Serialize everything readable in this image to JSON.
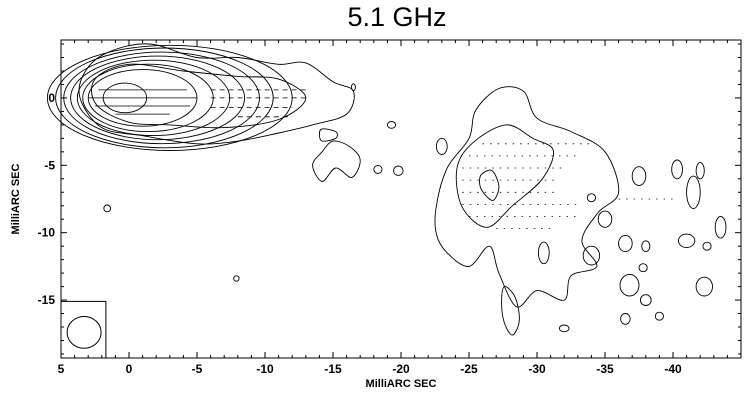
{
  "chart_data": {
    "type": "contour",
    "title": "5.1 GHz",
    "xlabel": "MilliARC SEC",
    "ylabel": "MilliARC SEC",
    "xlim": [
      5,
      -45
    ],
    "ylim": [
      -19.3,
      4.3
    ],
    "x_ticks": [
      5,
      0,
      -5,
      -10,
      -15,
      -20,
      -25,
      -30,
      -35,
      -40
    ],
    "x_tick_labels": [
      "5",
      "0",
      "-5",
      "-10",
      "-15",
      "-20",
      "-25",
      "-30",
      "-35",
      "-40"
    ],
    "y_ticks": [
      0,
      -5,
      -10,
      -15
    ],
    "y_tick_labels": [
      "0",
      "-5",
      "-10",
      "-15"
    ],
    "grid": false,
    "core": {
      "x": 0.5,
      "y": 0
    },
    "core_levels": [
      {
        "a": 4.0,
        "b": 2.1,
        "dx": -1.5
      },
      {
        "a": 4.8,
        "b": 2.5,
        "dx": -1.9
      },
      {
        "a": 5.6,
        "b": 2.8,
        "dx": -2.3
      },
      {
        "a": 6.4,
        "b": 3.1,
        "dx": -2.6
      },
      {
        "a": 7.2,
        "b": 3.4,
        "dx": -2.9
      },
      {
        "a": 8.0,
        "b": 3.7,
        "dx": -3.1
      },
      {
        "a": 9.0,
        "b": 3.9,
        "dx": -3.5
      }
    ],
    "outer_jet": [
      [
        3.2,
        2.0
      ],
      [
        1.5,
        3.4
      ],
      [
        -1.5,
        4.0
      ],
      [
        -5,
        3.0
      ],
      [
        -8,
        3.0
      ],
      [
        -11,
        2.5
      ],
      [
        -13,
        2.6
      ],
      [
        -15,
        1.2
      ],
      [
        -16.5,
        0.5
      ],
      [
        -16,
        -1.2
      ],
      [
        -13.5,
        -2.0
      ],
      [
        -11,
        -2.6
      ],
      [
        -8,
        -3.2
      ],
      [
        -5,
        -3.4
      ],
      [
        -1,
        -2.8
      ],
      [
        2,
        -2.2
      ],
      [
        3.6,
        0.0
      ]
    ],
    "mid_jet": [
      [
        2.5,
        1.4
      ],
      [
        0,
        2.5
      ],
      [
        -4,
        2.0
      ],
      [
        -8,
        1.6
      ],
      [
        -11,
        1.4
      ],
      [
        -13,
        0.0
      ],
      [
        -11,
        -1.6
      ],
      [
        -7,
        -2.2
      ],
      [
        -3,
        -2.0
      ],
      [
        0,
        -1.8
      ],
      [
        2.4,
        -0.5
      ]
    ],
    "knot_blob": [
      [
        -15,
        -3.2
      ],
      [
        -16.2,
        -3.6
      ],
      [
        -17,
        -4.6
      ],
      [
        -16.4,
        -5.9
      ],
      [
        -15.2,
        -5.2
      ],
      [
        -14.2,
        -6.2
      ],
      [
        -13.5,
        -5.0
      ],
      [
        -14.2,
        -4.0
      ]
    ],
    "knot_small": [
      [
        -14.2,
        -2.3
      ],
      [
        -15.2,
        -2.5
      ],
      [
        -15.2,
        -3.0
      ],
      [
        -14.2,
        -3.2
      ],
      [
        -14.0,
        -2.7
      ]
    ],
    "lobe_outer": [
      [
        -22.6,
        -8.0
      ],
      [
        -23.4,
        -5.2
      ],
      [
        -25,
        -3.0
      ],
      [
        -25.5,
        -0.9
      ],
      [
        -27.2,
        0.7
      ],
      [
        -29,
        0.5
      ],
      [
        -30,
        -1.5
      ],
      [
        -32.5,
        -2.5
      ],
      [
        -35,
        -4.0
      ],
      [
        -36,
        -7.0
      ],
      [
        -34.5,
        -8.5
      ],
      [
        -33.3,
        -10.6
      ],
      [
        -34.4,
        -12.5
      ],
      [
        -32.5,
        -13.2
      ],
      [
        -32,
        -15.0
      ],
      [
        -30,
        -14.3
      ],
      [
        -28.5,
        -15.5
      ],
      [
        -27.2,
        -13.0
      ],
      [
        -26.5,
        -11.0
      ],
      [
        -25,
        -12.5
      ],
      [
        -23.4,
        -11.5
      ],
      [
        -22.6,
        -10.1
      ]
    ],
    "lobe_inner": [
      [
        -24.1,
        -5.3
      ],
      [
        -25.2,
        -3.4
      ],
      [
        -27.7,
        -2.0
      ],
      [
        -29.7,
        -3.0
      ],
      [
        -31.2,
        -3.9
      ],
      [
        -30.4,
        -6.0
      ],
      [
        -28.2,
        -8.0
      ],
      [
        -26.3,
        -9.6
      ],
      [
        -24.5,
        -8.1
      ]
    ],
    "lobe_core": [
      [
        -25.9,
        -5.7
      ],
      [
        -26.7,
        -5.4
      ],
      [
        -27.2,
        -6.6
      ],
      [
        -26.8,
        -7.6
      ],
      [
        -26.2,
        -7.2
      ],
      [
        -25.8,
        -6.5
      ]
    ],
    "lobe_south": [
      [
        -27.6,
        -14.0
      ],
      [
        -28.4,
        -14.8
      ],
      [
        -28.7,
        -16.5
      ],
      [
        -28.2,
        -17.6
      ],
      [
        -27.6,
        -16.7
      ],
      [
        -27.4,
        -15.2
      ]
    ],
    "small_contours": [
      {
        "cx": 1.6,
        "cy": -8.2,
        "rx": 0.25,
        "ry": 0.25
      },
      {
        "cx": -16.5,
        "cy": 0.8,
        "rx": 0.15,
        "ry": 0.25
      },
      {
        "cx": -19.3,
        "cy": -2.0,
        "rx": 0.3,
        "ry": 0.25
      },
      {
        "cx": -18.3,
        "cy": -5.3,
        "rx": 0.3,
        "ry": 0.3
      },
      {
        "cx": -19.8,
        "cy": -5.4,
        "rx": 0.35,
        "ry": 0.35
      },
      {
        "cx": -23.0,
        "cy": -3.6,
        "rx": 0.4,
        "ry": 0.6
      },
      {
        "cx": -7.9,
        "cy": -13.4,
        "rx": 0.2,
        "ry": 0.2
      },
      {
        "cx": -30.5,
        "cy": -11.5,
        "rx": 0.4,
        "ry": 0.8
      },
      {
        "cx": -32.0,
        "cy": -17.1,
        "rx": 0.35,
        "ry": 0.25
      },
      {
        "cx": -34.0,
        "cy": -11.7,
        "rx": 0.6,
        "ry": 0.7
      },
      {
        "cx": -35.0,
        "cy": -9.0,
        "rx": 0.5,
        "ry": 0.6
      },
      {
        "cx": -36.5,
        "cy": -10.8,
        "rx": 0.5,
        "ry": 0.6
      },
      {
        "cx": -37.5,
        "cy": -5.8,
        "rx": 0.5,
        "ry": 0.7
      },
      {
        "cx": -36.8,
        "cy": -13.9,
        "rx": 0.7,
        "ry": 0.8
      },
      {
        "cx": -37.8,
        "cy": -12.6,
        "rx": 0.3,
        "ry": 0.3
      },
      {
        "cx": -36.5,
        "cy": -16.4,
        "rx": 0.35,
        "ry": 0.4
      },
      {
        "cx": -38.0,
        "cy": -15.0,
        "rx": 0.4,
        "ry": 0.4
      },
      {
        "cx": -39.0,
        "cy": -16.2,
        "rx": 0.3,
        "ry": 0.3
      },
      {
        "cx": -40.3,
        "cy": -5.3,
        "rx": 0.4,
        "ry": 0.7
      },
      {
        "cx": -41.5,
        "cy": -7.0,
        "rx": 0.5,
        "ry": 1.2
      },
      {
        "cx": -42.0,
        "cy": -5.4,
        "rx": 0.3,
        "ry": 0.6
      },
      {
        "cx": -41.0,
        "cy": -10.6,
        "rx": 0.6,
        "ry": 0.5
      },
      {
        "cx": -42.5,
        "cy": -11.0,
        "rx": 0.3,
        "ry": 0.3
      },
      {
        "cx": -43.5,
        "cy": -9.6,
        "rx": 0.4,
        "ry": 0.8
      },
      {
        "cx": -42.3,
        "cy": -14.0,
        "rx": 0.6,
        "ry": 0.7
      },
      {
        "cx": -38.0,
        "cy": -11.0,
        "rx": 0.3,
        "ry": 0.4
      },
      {
        "cx": -34.0,
        "cy": -7.4,
        "rx": 0.3,
        "ry": 0.3
      }
    ],
    "pol_vectors_core": [
      {
        "x": -1.0,
        "y": 0.6,
        "len": 6.5
      },
      {
        "x": -1.0,
        "y": 0.0,
        "len": 8.0
      },
      {
        "x": -1.0,
        "y": -0.6,
        "len": 7.0
      },
      {
        "x": -1.0,
        "y": -1.2,
        "len": 4.0
      }
    ],
    "pol_dashes_jet": [
      {
        "x0": -6,
        "x1": -13,
        "y": 0.6
      },
      {
        "x0": -6,
        "x1": -13,
        "y": 0.0
      },
      {
        "x0": -6,
        "x1": -12,
        "y": -0.7
      },
      {
        "x0": -8,
        "x1": -12,
        "y": -1.4
      }
    ],
    "pol_dashes_lobe": [
      {
        "x0": -26,
        "x1": -34,
        "y": -3.4
      },
      {
        "x0": -25,
        "x1": -33,
        "y": -4.3
      },
      {
        "x0": -24.5,
        "x1": -32,
        "y": -5.2
      },
      {
        "x0": -24.5,
        "x1": -31.5,
        "y": -6.1
      },
      {
        "x0": -24.5,
        "x1": -31.5,
        "y": -7.0
      },
      {
        "x0": -24.5,
        "x1": -33,
        "y": -7.9
      },
      {
        "x0": -25,
        "x1": -33,
        "y": -8.8
      },
      {
        "x0": -27,
        "x1": -31,
        "y": -9.7
      },
      {
        "x0": -36,
        "x1": -40,
        "y": -7.5
      }
    ],
    "beam": {
      "cx": 3.3,
      "cy": -17.4,
      "r": 1.0,
      "box": [
        5,
        1.7,
        -15.1,
        -19.3
      ]
    }
  }
}
